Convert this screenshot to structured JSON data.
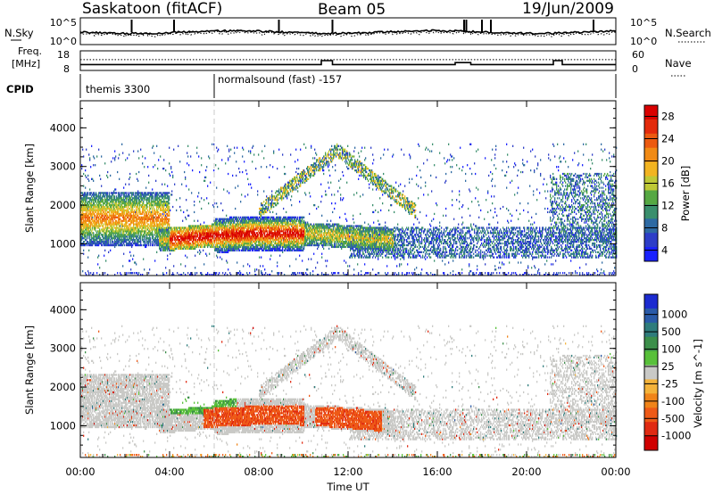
{
  "header": {
    "station": "Saskatoon (fitACF)",
    "beam": "Beam 05",
    "date": "19/Jun/2009"
  },
  "chart_data": [
    {
      "type": "line",
      "name": "noise-panel",
      "left_label": "N.Sky",
      "right_label": "N.Search",
      "left_ticks": [
        "10^5",
        "10^0"
      ],
      "right_ticks": [
        "10^5",
        "10^0"
      ]
    },
    {
      "type": "line",
      "name": "frequency-nave-panel",
      "left_label": "Freq.",
      "left_unit": "[MHz]",
      "right_label": "Nave",
      "left_ticks": [
        18,
        8
      ],
      "right_ticks": [
        60,
        0
      ]
    },
    {
      "type": "annotation",
      "name": "cpid-panel",
      "label": "CPID",
      "programs": [
        {
          "name": "themis 3300",
          "start_hour": 0.0
        },
        {
          "name": "normalsound (fast) -157",
          "start_hour": 6.0
        }
      ]
    },
    {
      "type": "heatmap",
      "name": "power-panel",
      "ylabel": "Slant Range [km]",
      "ylim": [
        180,
        4700
      ],
      "yticks": [
        1000,
        2000,
        3000,
        4000
      ],
      "xlim": [
        0,
        24
      ],
      "colorbar_label": "Power [dB]",
      "colorbar_ticks": [
        4,
        8,
        12,
        16,
        20,
        24,
        28
      ],
      "colorbar_colors": [
        "#1a22ff",
        "#2d3ec7",
        "#2e6aa3",
        "#3a8f6d",
        "#56a843",
        "#bfc936",
        "#f2b421",
        "#f18a14",
        "#ec5a10",
        "#e32a0b",
        "#d90000"
      ]
    },
    {
      "type": "heatmap",
      "name": "velocity-panel",
      "ylabel": "Slant Range [km]",
      "ylim": [
        180,
        4700
      ],
      "yticks": [
        1000,
        2000,
        3000,
        4000
      ],
      "xlim": [
        0,
        24
      ],
      "xlabel": "Time UT",
      "xticks": [
        "00:00",
        "04:00",
        "08:00",
        "12:00",
        "16:00",
        "20:00",
        "00:00"
      ],
      "colorbar_label": "Velocity [m s^-1]",
      "colorbar_ticks": [
        "1000",
        "500",
        "100",
        "25",
        "-25",
        "-100",
        "-500",
        "-1000"
      ],
      "colorbar_colors": [
        "#1c2bd0",
        "#2a5aa8",
        "#2f7c7c",
        "#3c8f4a",
        "#58c03a",
        "#c9c9c6",
        "#f4b33a",
        "#f08419",
        "#ee5a17",
        "#e02a12",
        "#d00000"
      ]
    }
  ]
}
